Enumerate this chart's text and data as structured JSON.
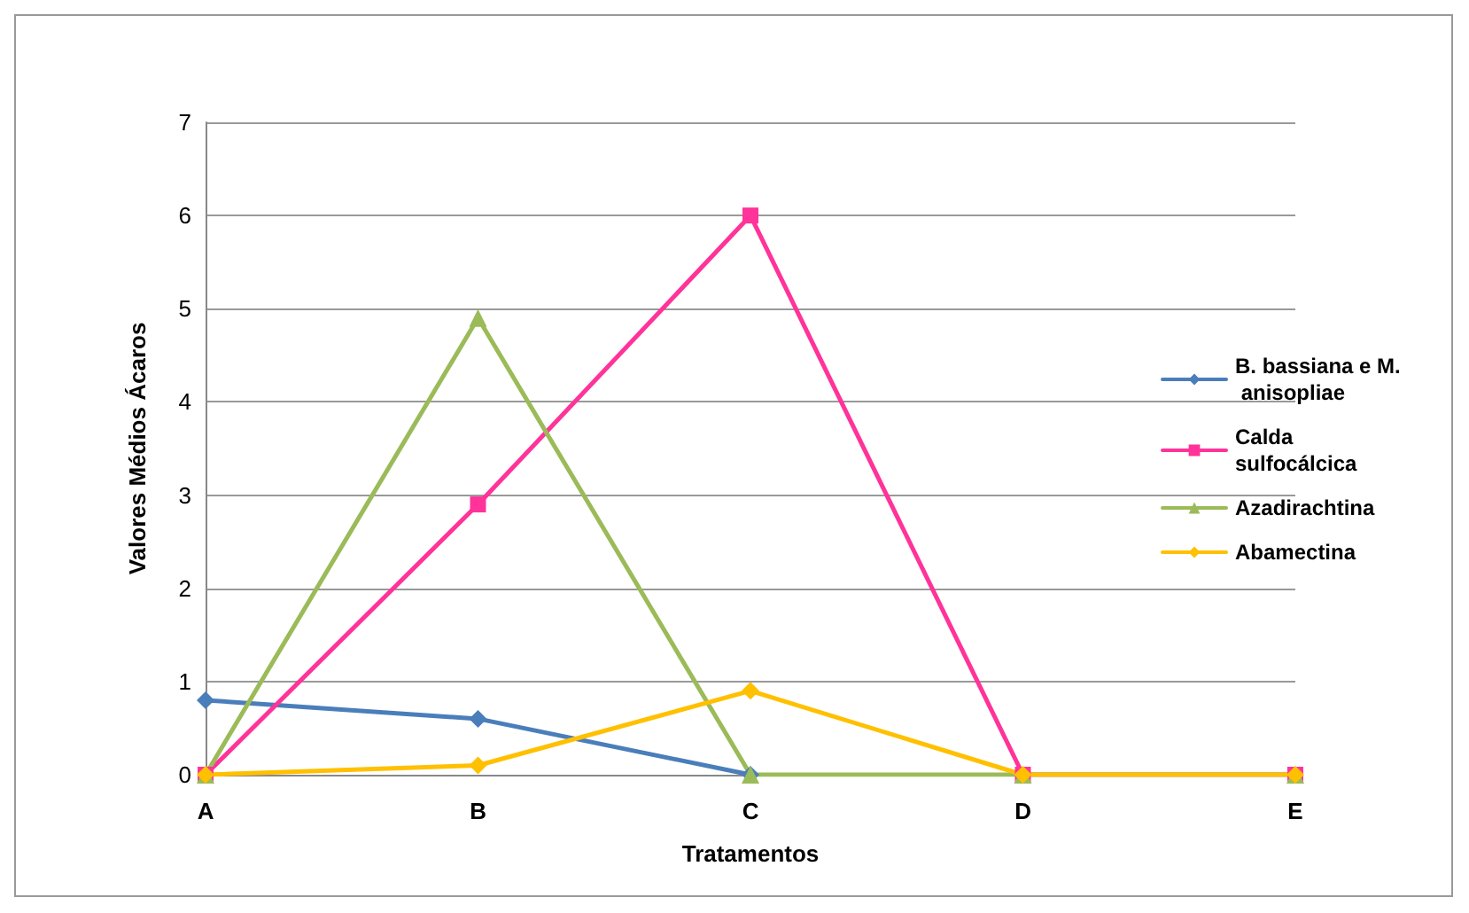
{
  "chart_data": {
    "type": "line",
    "xlabel": "Tratamentos",
    "ylabel": "Valores Médios Ácaros",
    "categories": [
      "A",
      "B",
      "C",
      "D",
      "E"
    ],
    "series": [
      {
        "name": "B. bassiana e M. anisopliae",
        "color": "#4a7ebb",
        "marker": "diamond",
        "values": [
          0.8,
          0.6,
          0,
          null,
          null
        ]
      },
      {
        "name": "Calda sulfocálcica",
        "color": "#ff3399",
        "marker": "square",
        "values": [
          0,
          2.9,
          6,
          0,
          0
        ]
      },
      {
        "name": "Azadirachtina",
        "color": "#9bbb59",
        "marker": "triangle",
        "values": [
          0,
          4.9,
          0,
          0,
          0
        ]
      },
      {
        "name": "Abamectina",
        "color": "#ffc000",
        "marker": "diamond",
        "values": [
          0,
          0.1,
          0.9,
          0,
          0
        ]
      }
    ],
    "ylim": [
      0,
      7
    ],
    "yticks": [
      0,
      1,
      2,
      3,
      4,
      5,
      6,
      7
    ],
    "grid": "y",
    "legend": "right",
    "line_style": "solid"
  }
}
